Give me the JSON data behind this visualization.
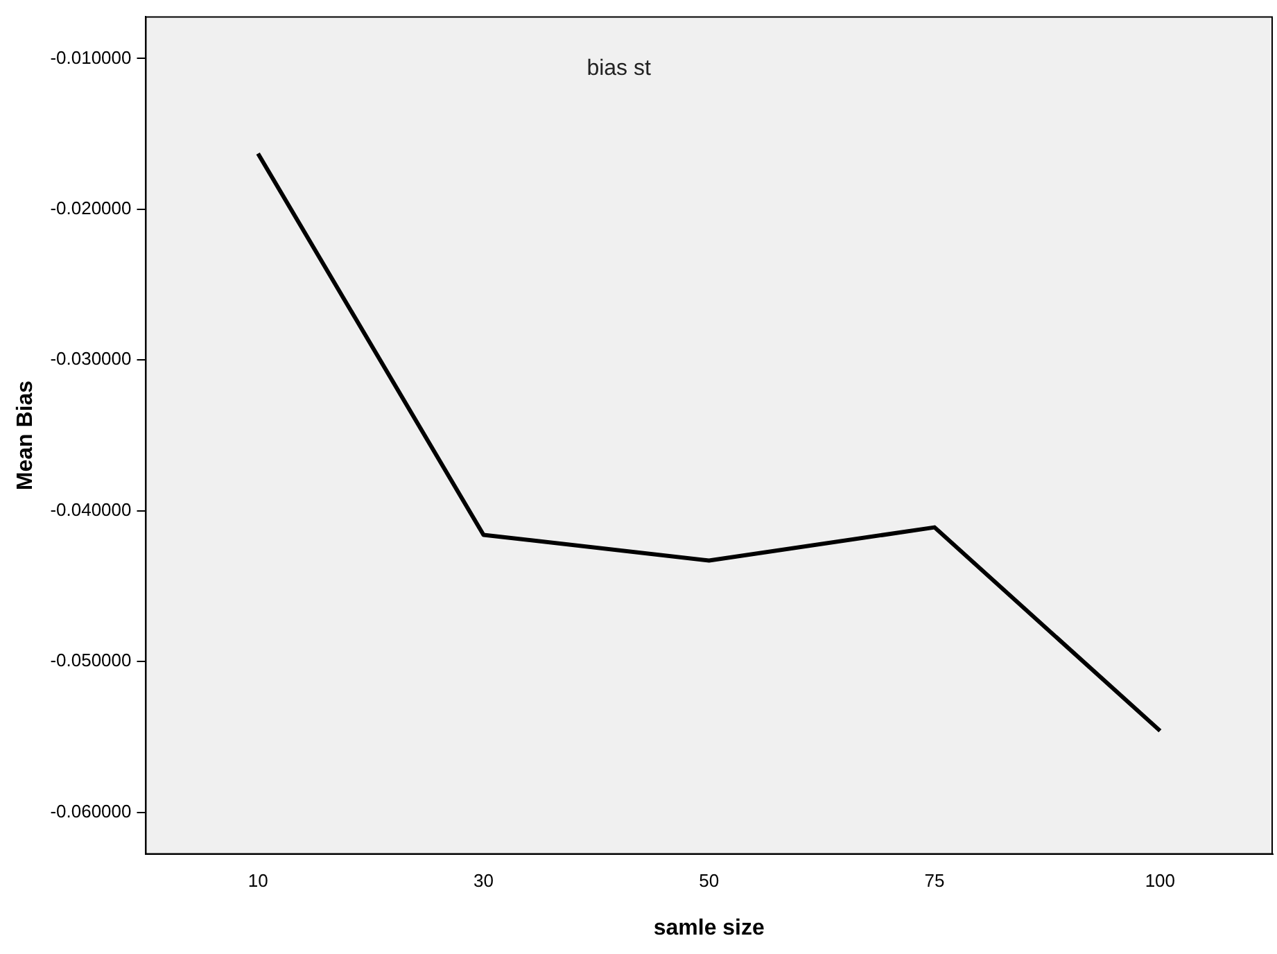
{
  "chart_data": {
    "type": "line",
    "xlabel": "samle size",
    "ylabel": "Mean Bias",
    "annotations": [
      "bias st"
    ],
    "categories": [
      "10",
      "30",
      "50",
      "75",
      "100"
    ],
    "series": [
      {
        "color": "#000000",
        "values": [
          -0.0163,
          -0.0416,
          -0.0433,
          -0.0411,
          -0.0546
        ]
      }
    ],
    "ylim": [
      -0.0628,
      -0.0072
    ],
    "yticks": [
      {
        "value": -0.06,
        "label": "-0.060000"
      },
      {
        "value": -0.05,
        "label": "-0.050000"
      },
      {
        "value": -0.04,
        "label": "-0.040000"
      },
      {
        "value": -0.03,
        "label": "-0.030000"
      },
      {
        "value": -0.02,
        "label": "-0.020000"
      },
      {
        "value": -0.01,
        "label": "-0.010000"
      }
    ],
    "grid": false,
    "legend": false,
    "marker": "none",
    "line_style": "solid"
  }
}
